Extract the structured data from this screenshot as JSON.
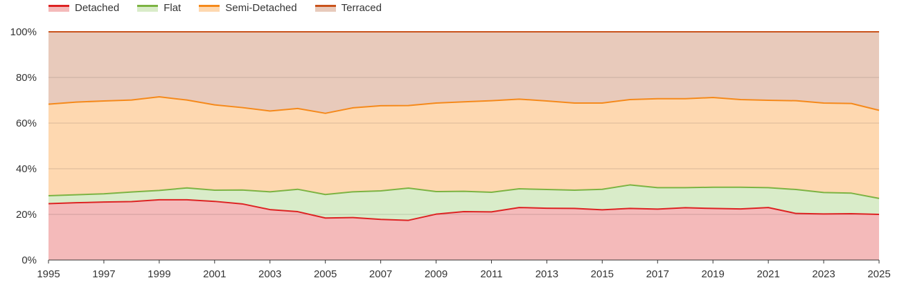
{
  "chart_data": {
    "type": "area",
    "stacked": true,
    "percent": true,
    "x": [
      1995,
      1996,
      1997,
      1998,
      1999,
      2000,
      2001,
      2002,
      2003,
      2004,
      2005,
      2006,
      2007,
      2008,
      2009,
      2010,
      2011,
      2012,
      2013,
      2014,
      2015,
      2016,
      2017,
      2018,
      2019,
      2020,
      2021,
      2022,
      2023,
      2024,
      2025
    ],
    "x_ticks": [
      "1995",
      "1997",
      "1999",
      "2001",
      "2003",
      "2005",
      "2007",
      "2009",
      "2011",
      "2013",
      "2015",
      "2017",
      "2019",
      "2021",
      "2023",
      "2025"
    ],
    "y_ticks": [
      "0%",
      "20%",
      "40%",
      "60%",
      "80%",
      "100%"
    ],
    "ylim": [
      0,
      100
    ],
    "grid": true,
    "legend_position": "top-left",
    "series": [
      {
        "name": "Detached",
        "line_color": "#dd2222",
        "fill_color": "#f4baba",
        "values": [
          24.7,
          25.1,
          25.4,
          25.6,
          26.4,
          26.4,
          25.7,
          24.6,
          22.1,
          21.2,
          18.4,
          18.6,
          17.8,
          17.4,
          20.1,
          21.2,
          21.1,
          23.0,
          22.7,
          22.6,
          22.0,
          22.6,
          22.3,
          22.9,
          22.6,
          22.4,
          23.0,
          20.4,
          20.2,
          20.3,
          20.0
        ]
      },
      {
        "name": "Flat",
        "line_color": "#7cb342",
        "fill_color": "#d9ecc9",
        "values": [
          3.5,
          3.5,
          3.6,
          4.2,
          4.1,
          5.2,
          4.9,
          6.1,
          7.8,
          9.8,
          10.3,
          11.3,
          12.5,
          14.1,
          9.9,
          8.9,
          8.6,
          8.2,
          8.2,
          8.0,
          9.0,
          10.3,
          9.4,
          8.8,
          9.3,
          9.5,
          8.7,
          10.5,
          9.4,
          9.0,
          7.0
        ]
      },
      {
        "name": "Semi-Detached",
        "line_color": "#f5891a",
        "fill_color": "#fed8b0",
        "values": [
          40.1,
          40.6,
          40.7,
          40.3,
          41.0,
          38.5,
          37.4,
          36.1,
          35.4,
          35.4,
          35.6,
          36.8,
          37.3,
          36.2,
          38.8,
          39.2,
          40.1,
          39.3,
          38.8,
          38.2,
          37.8,
          37.4,
          39.0,
          39.0,
          39.3,
          38.4,
          38.3,
          38.9,
          39.2,
          39.3,
          38.6
        ]
      },
      {
        "name": "Terraced",
        "line_color": "#c9521a",
        "fill_color": "#e8cabb",
        "values": [
          31.7,
          30.8,
          30.3,
          29.9,
          28.5,
          29.9,
          32.0,
          33.2,
          34.7,
          33.6,
          35.7,
          33.3,
          32.4,
          32.3,
          31.2,
          30.7,
          30.2,
          29.5,
          30.3,
          31.2,
          31.2,
          29.7,
          29.3,
          29.3,
          28.8,
          29.7,
          30.0,
          30.2,
          31.2,
          31.4,
          34.4
        ]
      }
    ]
  }
}
